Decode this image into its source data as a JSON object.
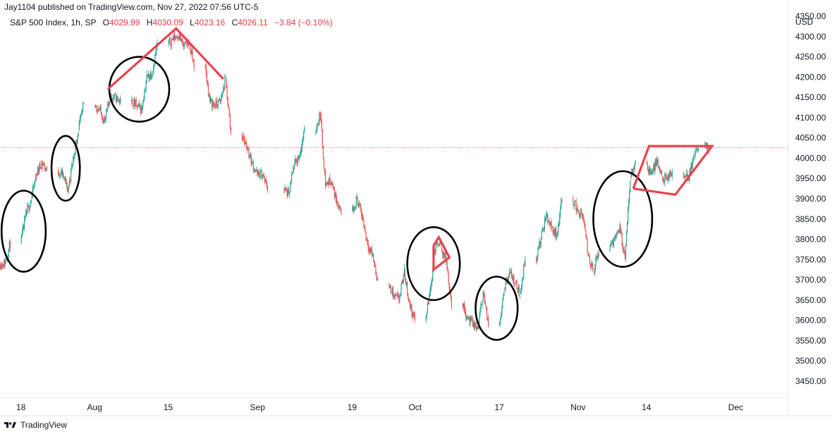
{
  "header": {
    "publisher": "Jay1104 published on TradingView.com, Nov 27, 2022 07:56 UTC-5"
  },
  "legend": {
    "symbol": "S&P 500 Index, 1h, SP",
    "open_label": "O",
    "open": "4029.99",
    "high_label": "H",
    "high": "4030.09",
    "low_label": "L",
    "low": "4023.16",
    "close_label": "C",
    "close": "4026.11",
    "change": "−3.84 (−0.10%)"
  },
  "axis": {
    "currency": "USD"
  },
  "footer": {
    "brand": "TradingView"
  },
  "colors": {
    "up": "#26a69a",
    "down": "#ef5350",
    "drawing": "#e8424f",
    "circle": "#000000",
    "price_line": "#ef5350"
  },
  "chart_data": {
    "type": "candlestick",
    "x_ticks": [
      "18",
      "Aug",
      "15",
      "Sep",
      "19",
      "Oct",
      "17",
      "Nov",
      "14",
      "Dec"
    ],
    "y_ticks": [
      3450,
      3500,
      3550,
      3600,
      3650,
      3700,
      3750,
      3800,
      3850,
      3900,
      3950,
      4000,
      4050,
      4100,
      4150,
      4200,
      4250,
      4300,
      4350
    ],
    "ylim": [
      3410,
      4390
    ],
    "xlim": [
      "2022-07-14",
      "2022-12-11"
    ],
    "last_price": 4026.11,
    "price_path": [
      [
        "2022-07-14",
        3740
      ],
      [
        "2022-07-15",
        3790
      ],
      [
        "2022-07-18",
        3860
      ],
      [
        "2022-07-19",
        3900
      ],
      [
        "2022-07-20",
        3960
      ],
      [
        "2022-07-21",
        3990
      ],
      [
        "2022-07-22",
        3970
      ],
      [
        "2022-07-25",
        3960
      ],
      [
        "2022-07-26",
        3920
      ],
      [
        "2022-07-27",
        4000
      ],
      [
        "2022-07-28",
        4070
      ],
      [
        "2022-07-29",
        4130
      ],
      [
        "2022-08-01",
        4120
      ],
      [
        "2022-08-02",
        4090
      ],
      [
        "2022-08-03",
        4150
      ],
      [
        "2022-08-04",
        4150
      ],
      [
        "2022-08-05",
        4140
      ],
      [
        "2022-08-08",
        4130
      ],
      [
        "2022-08-09",
        4120
      ],
      [
        "2022-08-10",
        4200
      ],
      [
        "2022-08-11",
        4210
      ],
      [
        "2022-08-12",
        4280
      ],
      [
        "2022-08-15",
        4295
      ],
      [
        "2022-08-16",
        4305
      ],
      [
        "2022-08-17",
        4275
      ],
      [
        "2022-08-18",
        4285
      ],
      [
        "2022-08-19",
        4230
      ],
      [
        "2022-08-22",
        4140
      ],
      [
        "2022-08-23",
        4130
      ],
      [
        "2022-08-24",
        4140
      ],
      [
        "2022-08-25",
        4195
      ],
      [
        "2022-08-26",
        4060
      ],
      [
        "2022-08-29",
        4030
      ],
      [
        "2022-08-30",
        3990
      ],
      [
        "2022-08-31",
        3960
      ],
      [
        "2022-09-01",
        3960
      ],
      [
        "2022-09-02",
        3925
      ],
      [
        "2022-09-06",
        3910
      ],
      [
        "2022-09-07",
        3980
      ],
      [
        "2022-09-08",
        4005
      ],
      [
        "2022-09-09",
        4065
      ],
      [
        "2022-09-12",
        4110
      ],
      [
        "2022-09-13",
        3935
      ],
      [
        "2022-09-14",
        3945
      ],
      [
        "2022-09-15",
        3900
      ],
      [
        "2022-09-16",
        3870
      ],
      [
        "2022-09-19",
        3900
      ],
      [
        "2022-09-20",
        3855
      ],
      [
        "2022-09-21",
        3790
      ],
      [
        "2022-09-22",
        3760
      ],
      [
        "2022-09-23",
        3690
      ],
      [
        "2022-09-26",
        3660
      ],
      [
        "2022-09-27",
        3650
      ],
      [
        "2022-09-28",
        3720
      ],
      [
        "2022-09-29",
        3640
      ],
      [
        "2022-09-30",
        3600
      ],
      [
        "2022-10-03",
        3680
      ],
      [
        "2022-10-04",
        3790
      ],
      [
        "2022-10-05",
        3780
      ],
      [
        "2022-10-06",
        3745
      ],
      [
        "2022-10-07",
        3640
      ],
      [
        "2022-10-10",
        3610
      ],
      [
        "2022-10-11",
        3590
      ],
      [
        "2022-10-12",
        3580
      ],
      [
        "2022-10-13",
        3670
      ],
      [
        "2022-10-14",
        3585
      ],
      [
        "2022-10-17",
        3680
      ],
      [
        "2022-10-18",
        3720
      ],
      [
        "2022-10-19",
        3695
      ],
      [
        "2022-10-20",
        3665
      ],
      [
        "2022-10-21",
        3750
      ],
      [
        "2022-10-24",
        3800
      ],
      [
        "2022-10-25",
        3860
      ],
      [
        "2022-10-26",
        3830
      ],
      [
        "2022-10-27",
        3810
      ],
      [
        "2022-10-28",
        3900
      ],
      [
        "2022-10-31",
        3870
      ],
      [
        "2022-11-01",
        3855
      ],
      [
        "2022-11-02",
        3760
      ],
      [
        "2022-11-03",
        3720
      ],
      [
        "2022-11-04",
        3770
      ],
      [
        "2022-11-07",
        3805
      ],
      [
        "2022-11-08",
        3830
      ],
      [
        "2022-11-09",
        3750
      ],
      [
        "2022-11-10",
        3955
      ],
      [
        "2022-11-11",
        3990
      ],
      [
        "2022-11-14",
        3960
      ],
      [
        "2022-11-15",
        3990
      ],
      [
        "2022-11-16",
        3955
      ],
      [
        "2022-11-17",
        3945
      ],
      [
        "2022-11-18",
        3965
      ],
      [
        "2022-11-21",
        3950
      ],
      [
        "2022-11-22",
        4000
      ],
      [
        "2022-11-23",
        4025
      ],
      [
        "2022-11-25",
        4026
      ]
    ],
    "annotations": {
      "ellipses": [
        {
          "center": [
            "2022-07-18",
            3820
          ],
          "rx_days": 4.2,
          "ry_price": 100
        },
        {
          "center": [
            "2022-07-26",
            3975
          ],
          "rx_days": 2.7,
          "ry_price": 80
        },
        {
          "center": [
            "2022-08-09",
            4170
          ],
          "rx_days": 5.7,
          "ry_price": 80
        },
        {
          "center": [
            "2022-10-04",
            3740
          ],
          "rx_days": 5.0,
          "ry_price": 90
        },
        {
          "center": [
            "2022-10-16",
            3630
          ],
          "rx_days": 4.0,
          "ry_price": 78
        },
        {
          "center": [
            "2022-11-09",
            3850
          ],
          "rx_days": 5.6,
          "ry_price": 118
        }
      ],
      "lines": [
        [
          [
            "2022-08-03",
            4170
          ],
          [
            "2022-08-16",
            4320
          ],
          [
            "2022-08-25",
            4195
          ]
        ],
        [
          [
            "2022-10-04",
            3785
          ],
          [
            "2022-10-05",
            3805
          ],
          [
            "2022-10-07",
            3755
          ],
          [
            "2022-10-04",
            3725
          ],
          [
            "2022-10-04",
            3785
          ]
        ],
        [
          [
            "2022-11-11",
            3925
          ],
          [
            "2022-11-14",
            4030
          ],
          [
            "2022-11-24",
            4030
          ],
          [
            "2022-11-26",
            4030
          ],
          [
            "2022-11-19",
            3910
          ],
          [
            "2022-11-11",
            3925
          ]
        ]
      ]
    }
  }
}
